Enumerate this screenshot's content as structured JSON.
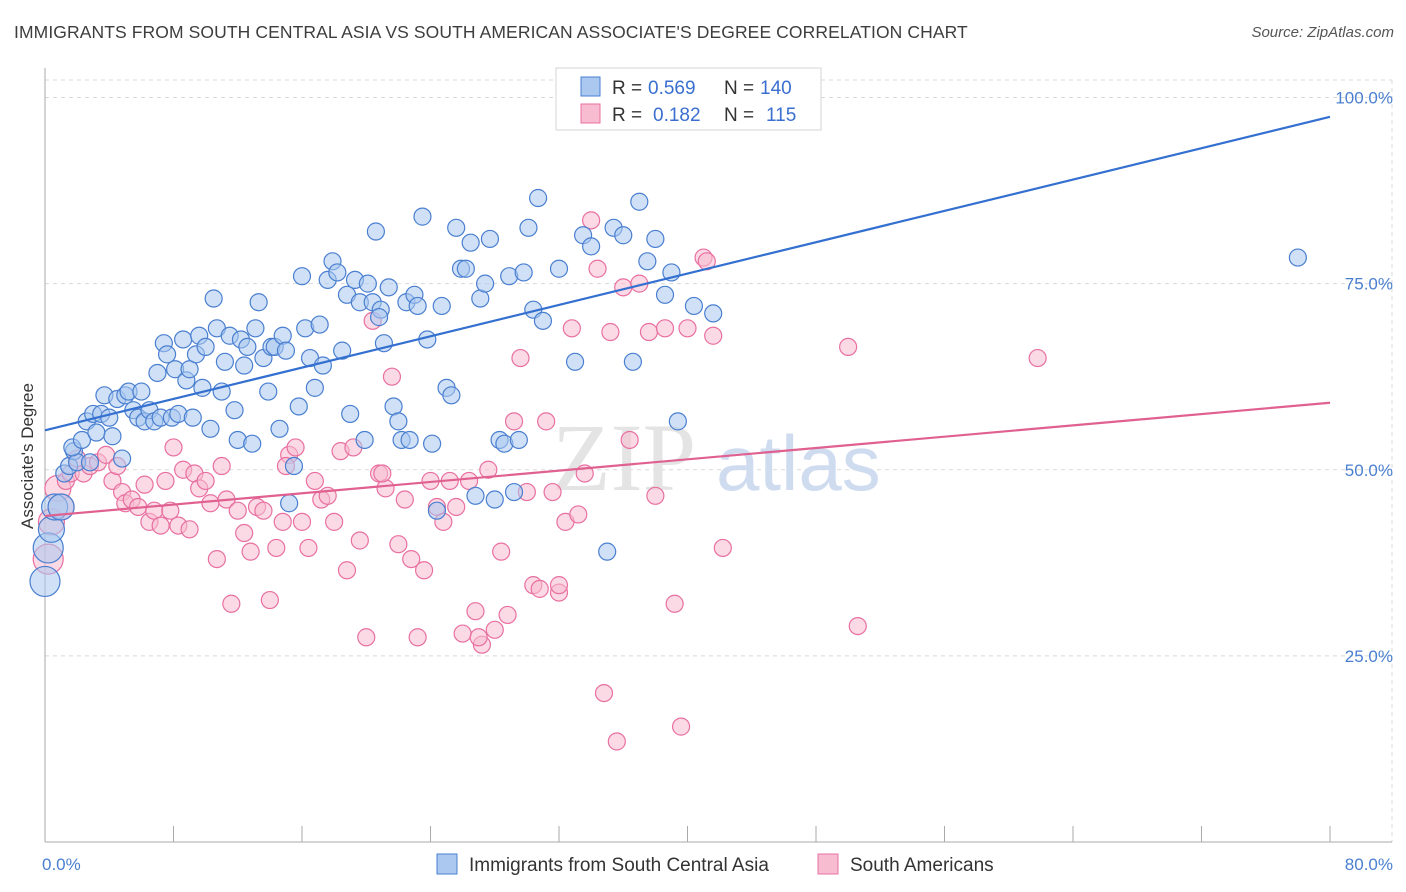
{
  "title": "IMMIGRANTS FROM SOUTH CENTRAL ASIA VS SOUTH AMERICAN ASSOCIATE'S DEGREE CORRELATION CHART",
  "source": "Source: ZipAtlas.com",
  "watermark": {
    "zip": "ZIP",
    "atlas": "atlas"
  },
  "colors": {
    "blue": "#4a7fd0",
    "blue_fill": "#aac8f0",
    "blue_line": "#3470d0",
    "pink": "#e870a0",
    "pink_fill": "#f7bcd0",
    "pink_line": "#e06090",
    "grid": "#d8d8d8",
    "tick_text": "#4a7fd0"
  },
  "legend": {
    "rows": [
      {
        "r_label": "R =",
        "r_value": "0.569",
        "n_label": "N =",
        "n_value": "140"
      },
      {
        "r_label": "R =",
        "r_value": "0.182",
        "n_label": "N =",
        "n_value": "115"
      }
    ]
  },
  "chart_data": {
    "type": "scatter",
    "title": "IMMIGRANTS FROM SOUTH CENTRAL ASIA VS SOUTH AMERICAN ASSOCIATE'S DEGREE CORRELATION CHART",
    "xlabel": "",
    "ylabel": "Associate's Degree",
    "xlim": [
      0,
      80
    ],
    "ylim": [
      0,
      100
    ],
    "x_tick_labels": [
      "0.0%",
      "80.0%"
    ],
    "y_tick_labels": [
      "25.0%",
      "50.0%",
      "75.0%",
      "100.0%"
    ],
    "y_ticks": [
      25,
      50,
      75,
      100
    ],
    "grid": true,
    "legend_position": "bottom-center",
    "series": [
      {
        "name": "Immigrants from South Central Asia",
        "color": "#4a7fd0",
        "r": 0.569,
        "n": 140,
        "trend": {
          "x": [
            0,
            80
          ],
          "y": [
            55.3,
            97.4
          ]
        },
        "points": [
          [
            0,
            35.0
          ],
          [
            0.2,
            39.5
          ],
          [
            0.4,
            42.0
          ],
          [
            0.6,
            45.0
          ],
          [
            1.0,
            45.0
          ],
          [
            1.2,
            49.5
          ],
          [
            1.5,
            50.5
          ],
          [
            1.8,
            52.5
          ],
          [
            2.0,
            51.0
          ],
          [
            1.7,
            53.0
          ],
          [
            2.3,
            54.0
          ],
          [
            2.6,
            56.5
          ],
          [
            2.8,
            51.0
          ],
          [
            3.0,
            57.5
          ],
          [
            3.2,
            55.0
          ],
          [
            3.5,
            57.5
          ],
          [
            3.7,
            60.0
          ],
          [
            4.0,
            57.0
          ],
          [
            4.2,
            54.5
          ],
          [
            4.5,
            59.5
          ],
          [
            4.8,
            51.5
          ],
          [
            5.0,
            60.0
          ],
          [
            5.2,
            60.5
          ],
          [
            5.5,
            58.0
          ],
          [
            5.8,
            57.0
          ],
          [
            6.0,
            60.5
          ],
          [
            6.2,
            56.5
          ],
          [
            6.5,
            58.0
          ],
          [
            6.8,
            56.5
          ],
          [
            7.0,
            63.0
          ],
          [
            7.2,
            57.0
          ],
          [
            7.4,
            67.0
          ],
          [
            7.6,
            65.5
          ],
          [
            7.9,
            57.0
          ],
          [
            8.1,
            63.5
          ],
          [
            8.3,
            57.5
          ],
          [
            8.6,
            67.5
          ],
          [
            8.8,
            62.0
          ],
          [
            9.0,
            63.5
          ],
          [
            9.2,
            57.0
          ],
          [
            9.4,
            65.5
          ],
          [
            9.6,
            68.0
          ],
          [
            9.8,
            61.0
          ],
          [
            10.0,
            66.5
          ],
          [
            10.3,
            55.5
          ],
          [
            10.5,
            73.0
          ],
          [
            10.7,
            69.0
          ],
          [
            11.0,
            60.5
          ],
          [
            11.2,
            64.5
          ],
          [
            11.5,
            68.0
          ],
          [
            11.8,
            58.0
          ],
          [
            12.0,
            54.0
          ],
          [
            12.2,
            67.5
          ],
          [
            12.4,
            64.0
          ],
          [
            12.6,
            66.5
          ],
          [
            12.9,
            53.5
          ],
          [
            13.1,
            69.0
          ],
          [
            13.3,
            72.5
          ],
          [
            13.6,
            65.0
          ],
          [
            13.9,
            60.5
          ],
          [
            14.1,
            66.5
          ],
          [
            14.3,
            66.5
          ],
          [
            14.6,
            55.5
          ],
          [
            14.8,
            68.0
          ],
          [
            15.0,
            66.0
          ],
          [
            15.2,
            45.5
          ],
          [
            15.5,
            50.5
          ],
          [
            15.8,
            58.5
          ],
          [
            16.0,
            76.0
          ],
          [
            16.2,
            69.0
          ],
          [
            16.5,
            65.0
          ],
          [
            16.8,
            61.0
          ],
          [
            17.1,
            69.5
          ],
          [
            17.3,
            64.0
          ],
          [
            17.6,
            75.5
          ],
          [
            17.9,
            78.0
          ],
          [
            18.2,
            76.5
          ],
          [
            18.5,
            66.0
          ],
          [
            18.8,
            73.5
          ],
          [
            19.0,
            57.5
          ],
          [
            19.3,
            75.5
          ],
          [
            19.6,
            72.5
          ],
          [
            19.9,
            54.0
          ],
          [
            20.1,
            75.0
          ],
          [
            20.4,
            72.5
          ],
          [
            20.6,
            82.0
          ],
          [
            20.9,
            71.5
          ],
          [
            21.1,
            67.0
          ],
          [
            21.4,
            74.5
          ],
          [
            21.7,
            58.5
          ],
          [
            22.0,
            56.5
          ],
          [
            22.2,
            54.0
          ],
          [
            22.5,
            72.5
          ],
          [
            22.7,
            54.0
          ],
          [
            23.0,
            73.5
          ],
          [
            23.2,
            72.0
          ],
          [
            23.5,
            84.0
          ],
          [
            23.8,
            67.5
          ],
          [
            24.1,
            53.5
          ],
          [
            24.4,
            44.5
          ],
          [
            24.7,
            72.0
          ],
          [
            25.0,
            61.0
          ],
          [
            25.3,
            60.0
          ],
          [
            25.6,
            82.5
          ],
          [
            25.9,
            77.0
          ],
          [
            26.2,
            77.0
          ],
          [
            26.5,
            80.5
          ],
          [
            26.8,
            46.5
          ],
          [
            27.1,
            73.0
          ],
          [
            27.4,
            75.0
          ],
          [
            27.7,
            81.0
          ],
          [
            28.0,
            46.0
          ],
          [
            28.3,
            54.0
          ],
          [
            28.6,
            53.5
          ],
          [
            28.9,
            76.0
          ],
          [
            29.2,
            47.0
          ],
          [
            29.5,
            54.0
          ],
          [
            29.8,
            76.5
          ],
          [
            30.1,
            82.5
          ],
          [
            30.4,
            71.5
          ],
          [
            30.7,
            86.5
          ],
          [
            31.0,
            70.0
          ],
          [
            32.0,
            77.0
          ],
          [
            33.0,
            64.5
          ],
          [
            33.5,
            81.5
          ],
          [
            34.0,
            80.0
          ],
          [
            35.0,
            39.0
          ],
          [
            35.4,
            82.5
          ],
          [
            36.0,
            81.5
          ],
          [
            36.6,
            64.5
          ],
          [
            37.0,
            86.0
          ],
          [
            37.5,
            78.0
          ],
          [
            38.0,
            81.0
          ],
          [
            38.6,
            73.5
          ],
          [
            39.0,
            76.5
          ],
          [
            39.4,
            56.5
          ],
          [
            40.4,
            72.0
          ],
          [
            41.6,
            71.0
          ],
          [
            78.0,
            78.5
          ],
          [
            20.8,
            70.5
          ]
        ]
      },
      {
        "name": "South Americans",
        "color": "#e870a0",
        "r": 0.182,
        "n": 115,
        "trend": {
          "x": [
            0,
            80
          ],
          "y": [
            43.8,
            59.0
          ]
        },
        "points": [
          [
            0.2,
            38.0
          ],
          [
            0.4,
            43.0
          ],
          [
            0.8,
            47.5
          ],
          [
            1.0,
            45.0
          ],
          [
            1.3,
            48.5
          ],
          [
            1.6,
            49.5
          ],
          [
            2.0,
            51.5
          ],
          [
            2.4,
            49.5
          ],
          [
            2.8,
            50.5
          ],
          [
            3.3,
            51.0
          ],
          [
            3.8,
            52.0
          ],
          [
            4.2,
            48.5
          ],
          [
            4.5,
            50.5
          ],
          [
            4.8,
            47.0
          ],
          [
            5.0,
            45.5
          ],
          [
            5.4,
            46.0
          ],
          [
            5.8,
            45.0
          ],
          [
            6.2,
            48.0
          ],
          [
            6.5,
            43.0
          ],
          [
            6.8,
            44.5
          ],
          [
            7.2,
            42.5
          ],
          [
            7.5,
            48.5
          ],
          [
            7.8,
            44.5
          ],
          [
            8.0,
            53.0
          ],
          [
            8.3,
            42.5
          ],
          [
            8.6,
            50.0
          ],
          [
            9.0,
            42.0
          ],
          [
            9.3,
            49.5
          ],
          [
            9.6,
            47.5
          ],
          [
            10.0,
            48.5
          ],
          [
            10.3,
            45.5
          ],
          [
            10.7,
            38.0
          ],
          [
            11.0,
            50.5
          ],
          [
            11.3,
            46.0
          ],
          [
            11.6,
            32.0
          ],
          [
            12.0,
            44.5
          ],
          [
            12.4,
            41.5
          ],
          [
            12.8,
            39.0
          ],
          [
            13.2,
            45.0
          ],
          [
            13.6,
            44.5
          ],
          [
            14.0,
            32.5
          ],
          [
            14.4,
            39.5
          ],
          [
            14.8,
            43.0
          ],
          [
            15.2,
            52.0
          ],
          [
            15.6,
            53.0
          ],
          [
            16.0,
            43.0
          ],
          [
            16.4,
            39.5
          ],
          [
            16.8,
            48.5
          ],
          [
            17.2,
            46.0
          ],
          [
            17.6,
            46.5
          ],
          [
            18.0,
            43.0
          ],
          [
            18.4,
            52.5
          ],
          [
            18.8,
            36.5
          ],
          [
            19.2,
            53.0
          ],
          [
            19.6,
            40.5
          ],
          [
            20.0,
            27.5
          ],
          [
            20.4,
            70.0
          ],
          [
            20.8,
            49.5
          ],
          [
            21.2,
            47.5
          ],
          [
            21.6,
            62.5
          ],
          [
            22.0,
            40.0
          ],
          [
            22.4,
            46.0
          ],
          [
            22.8,
            38.0
          ],
          [
            23.2,
            27.5
          ],
          [
            23.6,
            36.5
          ],
          [
            24.0,
            48.5
          ],
          [
            24.4,
            45.0
          ],
          [
            24.8,
            43.0
          ],
          [
            25.2,
            48.5
          ],
          [
            25.6,
            45.0
          ],
          [
            26.0,
            28.0
          ],
          [
            26.4,
            48.5
          ],
          [
            26.8,
            31.0
          ],
          [
            27.2,
            26.5
          ],
          [
            27.6,
            50.0
          ],
          [
            28.0,
            28.5
          ],
          [
            28.4,
            39.0
          ],
          [
            28.8,
            30.5
          ],
          [
            29.2,
            56.5
          ],
          [
            29.6,
            65.0
          ],
          [
            30.0,
            47.0
          ],
          [
            30.4,
            34.5
          ],
          [
            30.8,
            34.0
          ],
          [
            31.2,
            56.5
          ],
          [
            31.6,
            47.0
          ],
          [
            32.0,
            33.5
          ],
          [
            32.4,
            43.0
          ],
          [
            32.8,
            69.0
          ],
          [
            33.2,
            44.0
          ],
          [
            33.6,
            49.5
          ],
          [
            34.0,
            83.5
          ],
          [
            34.4,
            77.0
          ],
          [
            34.8,
            20.0
          ],
          [
            35.2,
            68.5
          ],
          [
            35.6,
            13.5
          ],
          [
            36.0,
            74.5
          ],
          [
            36.4,
            54.0
          ],
          [
            37.0,
            75.0
          ],
          [
            37.6,
            68.5
          ],
          [
            38.0,
            46.5
          ],
          [
            38.6,
            69.0
          ],
          [
            39.2,
            32.0
          ],
          [
            39.6,
            15.5
          ],
          [
            40.0,
            69.0
          ],
          [
            41.0,
            78.5
          ],
          [
            41.6,
            68.0
          ],
          [
            42.2,
            39.5
          ],
          [
            50.0,
            66.5
          ],
          [
            50.6,
            29.0
          ],
          [
            61.8,
            65.0
          ],
          [
            41.2,
            78.0
          ],
          [
            32.0,
            34.5
          ],
          [
            27.0,
            27.5
          ],
          [
            21.0,
            49.5
          ],
          [
            15.0,
            50.5
          ]
        ]
      }
    ]
  }
}
